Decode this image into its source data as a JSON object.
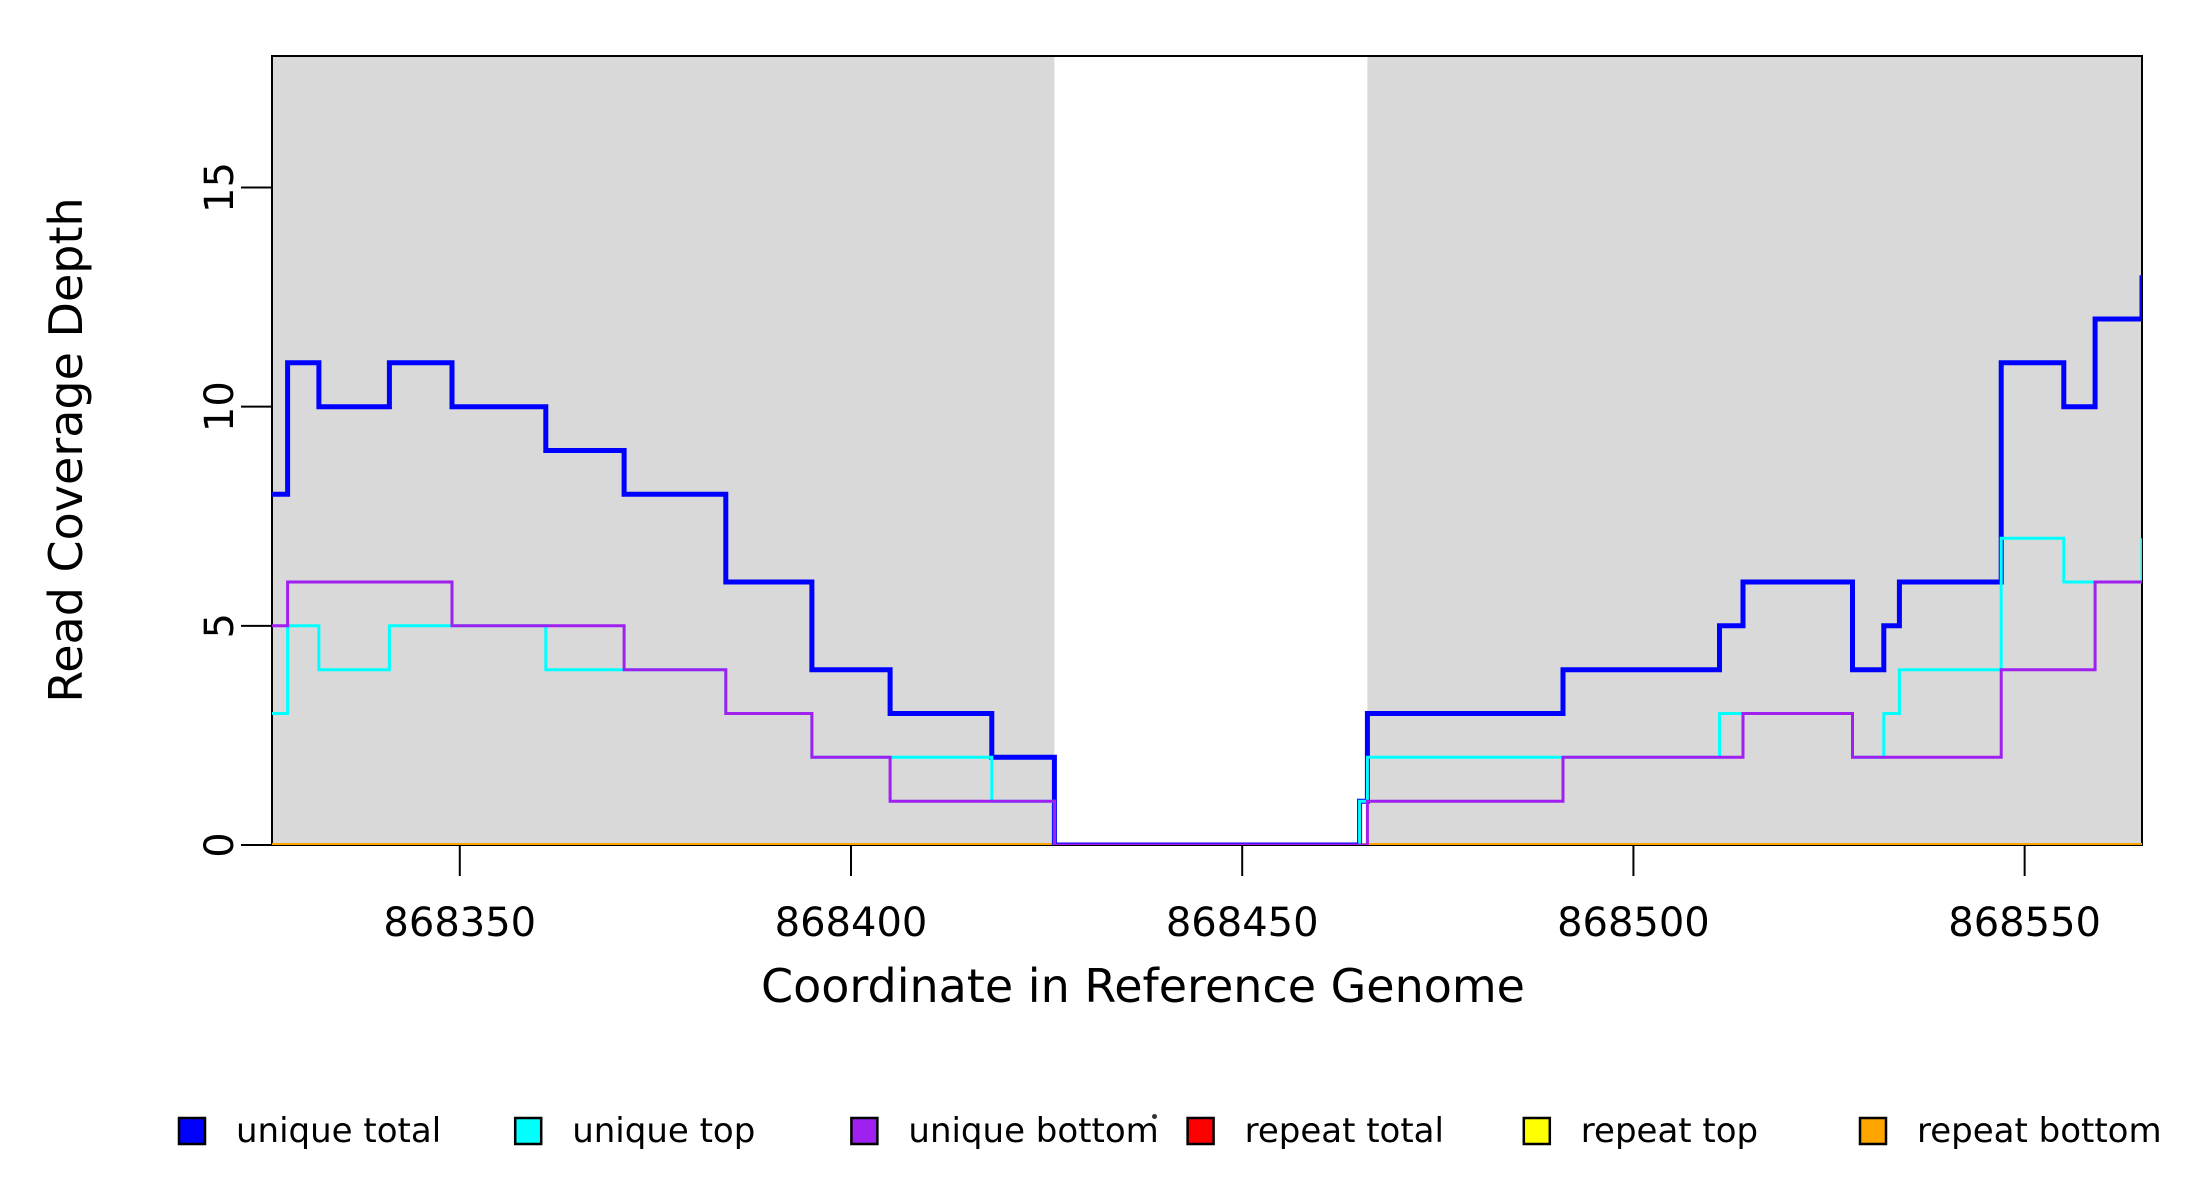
{
  "figure": {
    "background": "#ffffff",
    "text_color": "#000000"
  },
  "chart_data": {
    "type": "step-line",
    "title": "",
    "xlabel": "Coordinate in Reference Genome",
    "ylabel": "Read Coverage Depth",
    "xlim": [
      868326,
      868565
    ],
    "ylim": [
      0,
      18
    ],
    "grid": false,
    "x_ticks": [
      {
        "value": 868350,
        "label": "868350"
      },
      {
        "value": 868400,
        "label": "868400"
      },
      {
        "value": 868450,
        "label": "868450"
      },
      {
        "value": 868500,
        "label": "868500"
      },
      {
        "value": 868550,
        "label": "868550"
      }
    ],
    "y_ticks": [
      {
        "value": 0,
        "label": "0"
      },
      {
        "value": 5,
        "label": "5"
      },
      {
        "value": 10,
        "label": "10"
      },
      {
        "value": 15,
        "label": "15"
      }
    ],
    "shaded_regions": {
      "color": "#d9d9d9",
      "coords": [
        [
          868326,
          868426
        ],
        [
          868466,
          868565
        ]
      ]
    },
    "coverage_gap": [
      868426,
      868466
    ],
    "series": [
      {
        "name": "repeat total",
        "color": "#ff0000",
        "width": 3,
        "steps": [
          [
            868326,
            0
          ]
        ]
      },
      {
        "name": "repeat top",
        "color": "#ffff00",
        "width": 3,
        "steps": [
          [
            868326,
            0
          ]
        ]
      },
      {
        "name": "repeat bottom",
        "color": "#ffa500",
        "width": 4,
        "steps": [
          [
            868326,
            0
          ]
        ]
      },
      {
        "name": "unique total",
        "color": "#0000ff",
        "width": 5,
        "steps": [
          [
            868326,
            8
          ],
          [
            868328,
            11
          ],
          [
            868332,
            10
          ],
          [
            868341,
            11
          ],
          [
            868349,
            10
          ],
          [
            868361,
            9
          ],
          [
            868371,
            8
          ],
          [
            868384,
            6
          ],
          [
            868395,
            4
          ],
          [
            868405,
            3
          ],
          [
            868418,
            2
          ],
          [
            868426,
            0
          ],
          [
            868465,
            1
          ],
          [
            868466,
            3
          ],
          [
            868491,
            4
          ],
          [
            868511,
            5
          ],
          [
            868514,
            6
          ],
          [
            868528,
            4
          ],
          [
            868532,
            5
          ],
          [
            868534,
            6
          ],
          [
            868547,
            11
          ],
          [
            868555,
            10
          ],
          [
            868559,
            12
          ],
          [
            868565,
            13
          ]
        ]
      },
      {
        "name": "unique top",
        "color": "#00ffff",
        "width": 3,
        "steps": [
          [
            868326,
            3
          ],
          [
            868328,
            5
          ],
          [
            868332,
            4
          ],
          [
            868341,
            5
          ],
          [
            868361,
            4
          ],
          [
            868384,
            3
          ],
          [
            868395,
            2
          ],
          [
            868418,
            1
          ],
          [
            868426,
            0
          ],
          [
            868465,
            1
          ],
          [
            868466,
            2
          ],
          [
            868511,
            3
          ],
          [
            868528,
            2
          ],
          [
            868532,
            3
          ],
          [
            868534,
            4
          ],
          [
            868547,
            7
          ],
          [
            868555,
            6
          ],
          [
            868565,
            7
          ]
        ]
      },
      {
        "name": "unique bottom",
        "color": "#a020f0",
        "width": 3,
        "steps": [
          [
            868326,
            5
          ],
          [
            868328,
            6
          ],
          [
            868349,
            5
          ],
          [
            868371,
            4
          ],
          [
            868384,
            3
          ],
          [
            868395,
            2
          ],
          [
            868405,
            1
          ],
          [
            868426,
            0
          ],
          [
            868466,
            1
          ],
          [
            868491,
            2
          ],
          [
            868514,
            3
          ],
          [
            868528,
            2
          ],
          [
            868547,
            4
          ],
          [
            868559,
            6
          ]
        ]
      }
    ],
    "legend": {
      "position": "bottom",
      "entries": [
        {
          "label": "unique total",
          "color": "#0000ff"
        },
        {
          "label": "unique top",
          "color": "#00ffff"
        },
        {
          "label": "unique bottom",
          "color": "#a020f0"
        },
        {
          "label": "repeat total",
          "color": "#ff0000"
        },
        {
          "label": "repeat top",
          "color": "#ffff00"
        },
        {
          "label": "repeat bottom",
          "color": "#ffa500"
        }
      ]
    }
  }
}
